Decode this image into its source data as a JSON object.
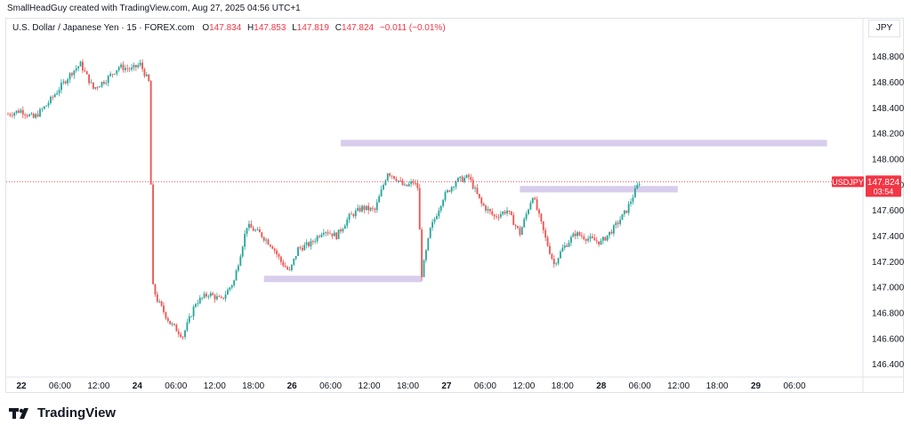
{
  "header": {
    "credit": "SmallHeadGuy created with TradingView.com, Aug 27, 2025 04:56 UTC+1",
    "symbol": "U.S. Dollar / Japanese Yen · 15 · FOREX.com",
    "o_label": "O",
    "o_value": "147.834",
    "h_label": "H",
    "h_value": "147.853",
    "l_label": "L",
    "l_value": "147.819",
    "c_label": "C",
    "c_value": "147.824",
    "change": "−0.011 (−0.01%)",
    "currency": "JPY"
  },
  "brand": {
    "name": "TradingView"
  },
  "colors": {
    "up": "#26a69a",
    "down": "#ef5350",
    "zone": "#d1c4e9",
    "price_tag": "#f23645"
  },
  "chart_data": {
    "type": "candlestick",
    "symbol": "USDJPY",
    "timeframe": "15",
    "y_range": [
      146.3,
      148.95
    ],
    "y_ticks": [
      "146.400",
      "146.600",
      "146.800",
      "147.000",
      "147.200",
      "147.400",
      "147.600",
      "147.800",
      "148.000",
      "148.200",
      "148.400",
      "148.600",
      "148.800"
    ],
    "x_ticks": [
      "22",
      "06:00",
      "12:00",
      "24",
      "06:00",
      "12:00",
      "18:00",
      "26",
      "06:00",
      "12:00",
      "18:00",
      "27",
      "06:00",
      "12:00",
      "18:00",
      "28",
      "06:00",
      "12:00",
      "18:00",
      "29",
      "06:00"
    ],
    "last_price": {
      "label": "USDJPY",
      "value": "147.824",
      "countdown": "03:54"
    },
    "path_points": [
      [
        0,
        148.35
      ],
      [
        3,
        148.38
      ],
      [
        6,
        148.32
      ],
      [
        9,
        148.42
      ],
      [
        12,
        148.55
      ],
      [
        15,
        148.68
      ],
      [
        17,
        148.74
      ],
      [
        20,
        148.55
      ],
      [
        23,
        148.62
      ],
      [
        26,
        148.72
      ],
      [
        29,
        148.7
      ],
      [
        31,
        148.74
      ],
      [
        33,
        148.6
      ],
      [
        34,
        147.0
      ],
      [
        35,
        146.9
      ],
      [
        38,
        146.72
      ],
      [
        41,
        146.62
      ],
      [
        44,
        146.88
      ],
      [
        47,
        146.95
      ],
      [
        50,
        146.9
      ],
      [
        53,
        147.05
      ],
      [
        56,
        147.48
      ],
      [
        59,
        147.42
      ],
      [
        62,
        147.32
      ],
      [
        64,
        147.2
      ],
      [
        66,
        147.12
      ],
      [
        68,
        147.3
      ],
      [
        71,
        147.34
      ],
      [
        74,
        147.45
      ],
      [
        77,
        147.4
      ],
      [
        80,
        147.55
      ],
      [
        83,
        147.62
      ],
      [
        86,
        147.6
      ],
      [
        89,
        147.9
      ],
      [
        91,
        147.85
      ],
      [
        93,
        147.78
      ],
      [
        95,
        147.82
      ],
      [
        96,
        147.78
      ],
      [
        97,
        147.1
      ],
      [
        99,
        147.45
      ],
      [
        102,
        147.7
      ],
      [
        105,
        147.83
      ],
      [
        108,
        147.86
      ],
      [
        111,
        147.65
      ],
      [
        114,
        147.55
      ],
      [
        117,
        147.6
      ],
      [
        120,
        147.42
      ],
      [
        123,
        147.72
      ],
      [
        126,
        147.38
      ],
      [
        128,
        147.18
      ],
      [
        130,
        147.3
      ],
      [
        133,
        147.42
      ],
      [
        136,
        147.38
      ],
      [
        139,
        147.35
      ],
      [
        142,
        147.46
      ],
      [
        145,
        147.6
      ],
      [
        148,
        147.824
      ]
    ],
    "zones": [
      {
        "from": 78,
        "to": 192,
        "low": 148.1,
        "high": 148.15
      },
      {
        "from": 60,
        "to": 97,
        "low": 147.04,
        "high": 147.09
      },
      {
        "from": 120,
        "to": 157,
        "low": 147.74,
        "high": 147.79
      }
    ]
  }
}
